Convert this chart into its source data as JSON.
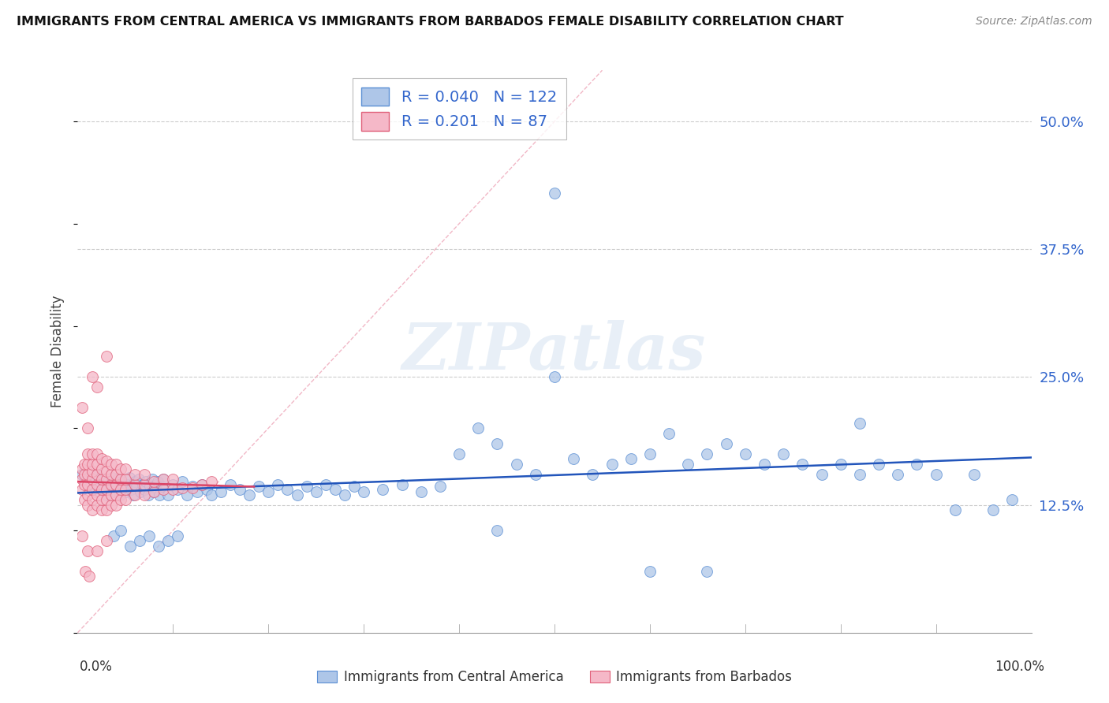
{
  "title": "IMMIGRANTS FROM CENTRAL AMERICA VS IMMIGRANTS FROM BARBADOS FEMALE DISABILITY CORRELATION CHART",
  "source": "Source: ZipAtlas.com",
  "ylabel": "Female Disability",
  "x_min": 0.0,
  "x_max": 1.0,
  "y_min": 0.0,
  "y_max": 0.55,
  "y_ticks": [
    0.125,
    0.25,
    0.375,
    0.5
  ],
  "y_tick_labels": [
    "12.5%",
    "25.0%",
    "37.5%",
    "50.0%"
  ],
  "R_blue": 0.04,
  "N_blue": 122,
  "R_pink": 0.201,
  "N_pink": 87,
  "blue_color": "#aec6e8",
  "blue_edge_color": "#5b8fd4",
  "blue_line_color": "#2255bb",
  "pink_color": "#f5b8c8",
  "pink_edge_color": "#e0607a",
  "pink_line_color": "#dd4466",
  "diag_color": "#f0b0c0",
  "watermark_text": "ZIPatlas",
  "legend_label_blue": "Immigrants from Central America",
  "legend_label_pink": "Immigrants from Barbados",
  "blue_scatter_x": [
    0.005,
    0.008,
    0.012,
    0.015,
    0.018,
    0.02,
    0.022,
    0.025,
    0.028,
    0.03,
    0.032,
    0.034,
    0.036,
    0.038,
    0.04,
    0.042,
    0.044,
    0.046,
    0.048,
    0.05,
    0.052,
    0.054,
    0.056,
    0.058,
    0.06,
    0.062,
    0.064,
    0.066,
    0.068,
    0.07,
    0.072,
    0.074,
    0.076,
    0.078,
    0.08,
    0.082,
    0.084,
    0.086,
    0.088,
    0.09,
    0.095,
    0.1,
    0.105,
    0.11,
    0.115,
    0.12,
    0.125,
    0.13,
    0.135,
    0.14,
    0.15,
    0.16,
    0.17,
    0.18,
    0.19,
    0.2,
    0.21,
    0.22,
    0.23,
    0.24,
    0.25,
    0.26,
    0.27,
    0.28,
    0.29,
    0.3,
    0.32,
    0.34,
    0.36,
    0.38,
    0.4,
    0.42,
    0.44,
    0.46,
    0.48,
    0.5,
    0.52,
    0.54,
    0.56,
    0.58,
    0.6,
    0.62,
    0.64,
    0.66,
    0.68,
    0.7,
    0.72,
    0.74,
    0.76,
    0.78,
    0.8,
    0.82,
    0.84,
    0.86,
    0.88,
    0.9,
    0.92,
    0.94,
    0.96,
    0.98,
    0.038,
    0.045,
    0.055,
    0.065,
    0.075,
    0.085,
    0.095,
    0.105,
    0.5,
    0.82,
    0.44,
    0.6,
    0.66
  ],
  "blue_scatter_y": [
    0.155,
    0.148,
    0.142,
    0.15,
    0.138,
    0.155,
    0.145,
    0.15,
    0.14,
    0.135,
    0.148,
    0.143,
    0.152,
    0.138,
    0.145,
    0.15,
    0.135,
    0.148,
    0.143,
    0.138,
    0.145,
    0.152,
    0.14,
    0.135,
    0.148,
    0.143,
    0.15,
    0.138,
    0.145,
    0.14,
    0.148,
    0.135,
    0.143,
    0.15,
    0.138,
    0.145,
    0.148,
    0.135,
    0.143,
    0.15,
    0.135,
    0.145,
    0.14,
    0.148,
    0.135,
    0.143,
    0.138,
    0.145,
    0.14,
    0.135,
    0.138,
    0.145,
    0.14,
    0.135,
    0.143,
    0.138,
    0.145,
    0.14,
    0.135,
    0.143,
    0.138,
    0.145,
    0.14,
    0.135,
    0.143,
    0.138,
    0.14,
    0.145,
    0.138,
    0.143,
    0.175,
    0.2,
    0.185,
    0.165,
    0.155,
    0.25,
    0.17,
    0.155,
    0.165,
    0.17,
    0.175,
    0.195,
    0.165,
    0.175,
    0.185,
    0.175,
    0.165,
    0.175,
    0.165,
    0.155,
    0.165,
    0.155,
    0.165,
    0.155,
    0.165,
    0.155,
    0.12,
    0.155,
    0.12,
    0.13,
    0.095,
    0.1,
    0.085,
    0.09,
    0.095,
    0.085,
    0.09,
    0.095,
    0.43,
    0.205,
    0.1,
    0.06,
    0.06
  ],
  "pink_scatter_x": [
    0.005,
    0.005,
    0.005,
    0.007,
    0.007,
    0.007,
    0.007,
    0.01,
    0.01,
    0.01,
    0.01,
    0.01,
    0.01,
    0.015,
    0.015,
    0.015,
    0.015,
    0.015,
    0.015,
    0.015,
    0.02,
    0.02,
    0.02,
    0.02,
    0.02,
    0.02,
    0.025,
    0.025,
    0.025,
    0.025,
    0.025,
    0.025,
    0.03,
    0.03,
    0.03,
    0.03,
    0.03,
    0.03,
    0.035,
    0.035,
    0.035,
    0.035,
    0.035,
    0.04,
    0.04,
    0.04,
    0.04,
    0.04,
    0.045,
    0.045,
    0.045,
    0.045,
    0.05,
    0.05,
    0.05,
    0.05,
    0.06,
    0.06,
    0.06,
    0.07,
    0.07,
    0.07,
    0.08,
    0.08,
    0.09,
    0.09,
    0.1,
    0.1,
    0.11,
    0.12,
    0.13,
    0.14,
    0.005,
    0.01,
    0.015,
    0.02,
    0.03,
    0.005,
    0.01,
    0.02,
    0.03,
    0.008,
    0.012
  ],
  "pink_scatter_y": [
    0.14,
    0.15,
    0.16,
    0.13,
    0.145,
    0.155,
    0.165,
    0.125,
    0.135,
    0.145,
    0.155,
    0.165,
    0.175,
    0.12,
    0.13,
    0.14,
    0.15,
    0.158,
    0.165,
    0.175,
    0.125,
    0.135,
    0.145,
    0.155,
    0.165,
    0.175,
    0.12,
    0.13,
    0.14,
    0.15,
    0.16,
    0.17,
    0.12,
    0.13,
    0.14,
    0.15,
    0.158,
    0.168,
    0.125,
    0.135,
    0.145,
    0.155,
    0.165,
    0.125,
    0.135,
    0.145,
    0.155,
    0.165,
    0.13,
    0.14,
    0.15,
    0.16,
    0.13,
    0.14,
    0.15,
    0.16,
    0.135,
    0.145,
    0.155,
    0.135,
    0.145,
    0.155,
    0.138,
    0.148,
    0.14,
    0.15,
    0.14,
    0.15,
    0.142,
    0.142,
    0.145,
    0.148,
    0.22,
    0.2,
    0.25,
    0.24,
    0.27,
    0.095,
    0.08,
    0.08,
    0.09,
    0.06,
    0.055
  ]
}
